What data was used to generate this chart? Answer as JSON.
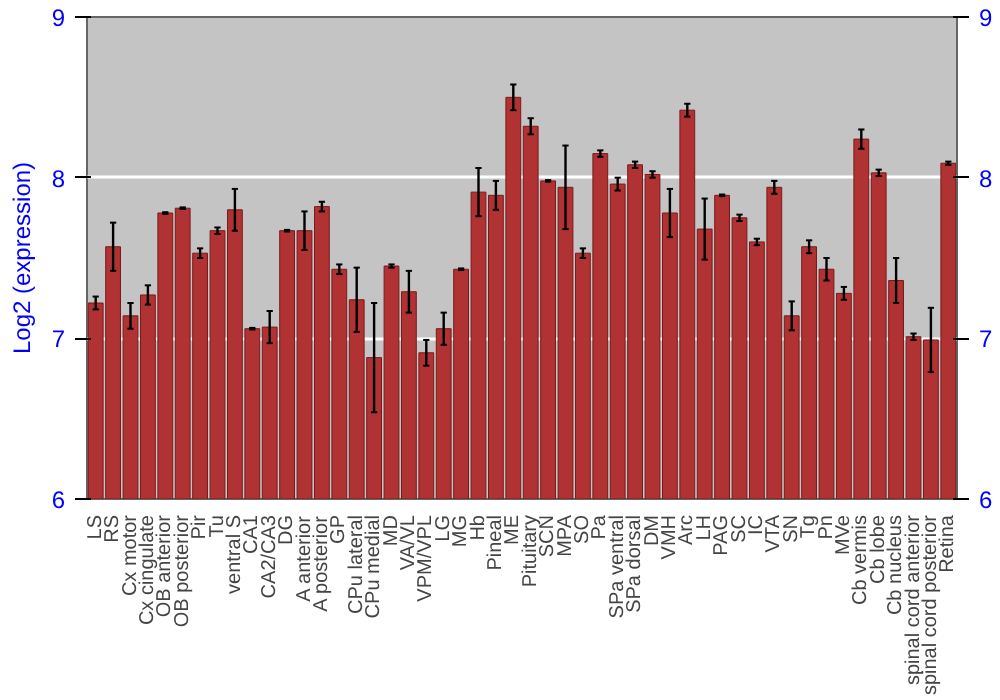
{
  "chart_data": {
    "type": "bar",
    "ylabel": "Log2 (expression)",
    "categories": [
      "LS",
      "RS",
      "Cx motor",
      "Cx cingulate",
      "OB anterior",
      "OB posterior",
      "Pir",
      "Tu",
      "ventral S",
      "CA1",
      "CA2/CA3",
      "DG",
      "A anterior",
      "A posterior",
      "GP",
      "CPu lateral",
      "CPu medial",
      "MD",
      "VA/VL",
      "VPM/VPL",
      "LG",
      "MG",
      "Hb",
      "Pineal",
      "ME",
      "Pituitary",
      "SCN",
      "MPA",
      "SO",
      "Pa",
      "SPa ventral",
      "SPa dorsal",
      "DM",
      "VMH",
      "Arc",
      "LH",
      "PAG",
      "SC",
      "IC",
      "VTA",
      "SN",
      "Tg",
      "Pn",
      "MVe",
      "Cb vermis",
      "Cb lobe",
      "Cb nucleus",
      "spinal cord anterior",
      "spinal cord posterior",
      "Retina"
    ],
    "values": [
      7.22,
      7.57,
      7.14,
      7.27,
      7.78,
      7.81,
      7.53,
      7.67,
      7.8,
      7.06,
      7.07,
      7.67,
      7.67,
      7.82,
      7.43,
      7.24,
      6.88,
      7.45,
      7.29,
      6.91,
      7.06,
      7.43,
      7.91,
      7.89,
      8.5,
      8.32,
      7.98,
      7.94,
      7.53,
      8.15,
      7.96,
      8.08,
      8.02,
      7.78,
      8.42,
      7.68,
      7.89,
      7.75,
      7.6,
      7.94,
      7.14,
      7.57,
      7.43,
      7.28,
      8.24,
      8.03,
      7.36,
      7.01,
      6.99,
      8.09
    ],
    "errors": [
      0.04,
      0.15,
      0.08,
      0.06,
      0.005,
      0.005,
      0.03,
      0.02,
      0.13,
      0.005,
      0.1,
      0.005,
      0.12,
      0.03,
      0.03,
      0.2,
      0.34,
      0.01,
      0.13,
      0.08,
      0.1,
      0.005,
      0.15,
      0.09,
      0.08,
      0.05,
      0.005,
      0.26,
      0.03,
      0.02,
      0.04,
      0.02,
      0.02,
      0.15,
      0.04,
      0.19,
      0.005,
      0.02,
      0.02,
      0.04,
      0.09,
      0.04,
      0.07,
      0.04,
      0.06,
      0.02,
      0.14,
      0.02,
      0.2,
      0.01
    ],
    "color": "#b03232",
    "ylim": [
      6,
      9
    ],
    "yticks": [
      6,
      7,
      8,
      9
    ],
    "y2lim": [
      6,
      9
    ],
    "y2ticks": [
      6,
      7,
      8,
      9
    ],
    "grid": "y"
  }
}
